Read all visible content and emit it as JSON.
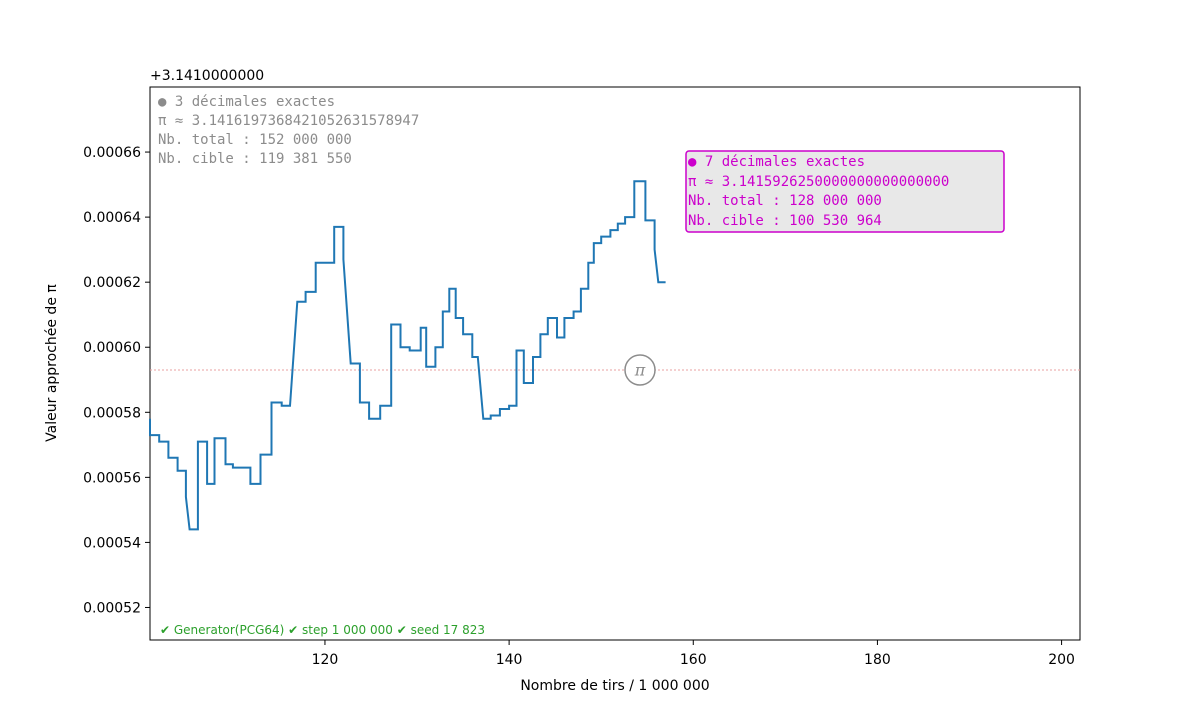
{
  "chart_data": {
    "type": "line",
    "offset_label": "+3.1410000000",
    "xlabel": "Nombre de tirs / 1 000 000",
    "ylabel": "Valeur approchée de π",
    "xlim": [
      101,
      202
    ],
    "ylim": [
      0.00051,
      0.00068
    ],
    "x_ticks": [
      120,
      140,
      160,
      180,
      200
    ],
    "y_ticks": [
      0.00052,
      0.00054,
      0.00056,
      0.00058,
      0.0006,
      0.00062,
      0.00064,
      0.00066
    ],
    "y_tick_labels": [
      "0.00052",
      "0.00054",
      "0.00056",
      "0.00058",
      "0.00060",
      "0.00062",
      "0.00064",
      "0.00066"
    ],
    "reference_line": {
      "y": 0.000593,
      "label": "π",
      "color": "#e8a0a0"
    },
    "series": [
      {
        "color": "#1f77b4",
        "points": [
          [
            101.0,
            0.000578
          ],
          [
            101.0,
            0.000573
          ],
          [
            102.0,
            0.000573
          ],
          [
            102.0,
            0.000571
          ],
          [
            103.0,
            0.000571
          ],
          [
            103.0,
            0.000566
          ],
          [
            104.0,
            0.000566
          ],
          [
            104.0,
            0.000562
          ],
          [
            104.9,
            0.000562
          ],
          [
            104.9,
            0.000554
          ],
          [
            105.3,
            0.000544
          ],
          [
            106.2,
            0.000544
          ],
          [
            106.2,
            0.000571
          ],
          [
            107.2,
            0.000571
          ],
          [
            107.2,
            0.000558
          ],
          [
            108.0,
            0.000558
          ],
          [
            108.0,
            0.000572
          ],
          [
            109.2,
            0.000572
          ],
          [
            109.2,
            0.000564
          ],
          [
            110.0,
            0.000564
          ],
          [
            110.0,
            0.000563
          ],
          [
            111.9,
            0.000563
          ],
          [
            111.9,
            0.000558
          ],
          [
            113.0,
            0.000558
          ],
          [
            113.0,
            0.000567
          ],
          [
            114.2,
            0.000567
          ],
          [
            114.2,
            0.000583
          ],
          [
            115.3,
            0.000583
          ],
          [
            115.3,
            0.000582
          ],
          [
            116.2,
            0.000582
          ],
          [
            117.0,
            0.000614
          ],
          [
            117.9,
            0.000614
          ],
          [
            117.9,
            0.000617
          ],
          [
            119.0,
            0.000617
          ],
          [
            119.0,
            0.000626
          ],
          [
            121.0,
            0.000626
          ],
          [
            121.0,
            0.000637
          ],
          [
            122.0,
            0.000637
          ],
          [
            122.0,
            0.000627
          ],
          [
            122.8,
            0.000595
          ],
          [
            123.8,
            0.000595
          ],
          [
            123.8,
            0.000583
          ],
          [
            124.8,
            0.000583
          ],
          [
            124.8,
            0.000578
          ],
          [
            126.0,
            0.000578
          ],
          [
            126.0,
            0.000582
          ],
          [
            127.2,
            0.000582
          ],
          [
            127.2,
            0.000607
          ],
          [
            128.2,
            0.000607
          ],
          [
            128.2,
            0.0006
          ],
          [
            129.2,
            0.0006
          ],
          [
            129.2,
            0.000599
          ],
          [
            130.4,
            0.000599
          ],
          [
            130.4,
            0.000606
          ],
          [
            131.0,
            0.000606
          ],
          [
            131.0,
            0.000594
          ],
          [
            132.0,
            0.000594
          ],
          [
            132.0,
            0.0006
          ],
          [
            132.8,
            0.0006
          ],
          [
            132.8,
            0.000611
          ],
          [
            133.5,
            0.000611
          ],
          [
            133.5,
            0.000618
          ],
          [
            134.2,
            0.000618
          ],
          [
            134.2,
            0.000609
          ],
          [
            135.0,
            0.000609
          ],
          [
            135.0,
            0.000604
          ],
          [
            136.0,
            0.000604
          ],
          [
            136.0,
            0.000597
          ],
          [
            136.6,
            0.000597
          ],
          [
            137.2,
            0.000578
          ],
          [
            138.0,
            0.000578
          ],
          [
            138.0,
            0.000579
          ],
          [
            139.0,
            0.000579
          ],
          [
            139.0,
            0.000581
          ],
          [
            140.0,
            0.000581
          ],
          [
            140.0,
            0.000582
          ],
          [
            140.8,
            0.000582
          ],
          [
            140.8,
            0.000599
          ],
          [
            141.6,
            0.000599
          ],
          [
            141.6,
            0.000589
          ],
          [
            142.6,
            0.000589
          ],
          [
            142.6,
            0.000597
          ],
          [
            143.4,
            0.000597
          ],
          [
            143.4,
            0.000604
          ],
          [
            144.2,
            0.000604
          ],
          [
            144.2,
            0.000609
          ],
          [
            145.2,
            0.000609
          ],
          [
            145.2,
            0.000603
          ],
          [
            146.0,
            0.000603
          ],
          [
            146.0,
            0.000609
          ],
          [
            147.0,
            0.000609
          ],
          [
            147.0,
            0.000611
          ],
          [
            147.8,
            0.000611
          ],
          [
            147.8,
            0.000618
          ],
          [
            148.6,
            0.000618
          ],
          [
            148.6,
            0.000626
          ],
          [
            149.2,
            0.000626
          ],
          [
            149.2,
            0.000632
          ],
          [
            150.0,
            0.000632
          ],
          [
            150.0,
            0.000634
          ],
          [
            151.0,
            0.000634
          ],
          [
            151.0,
            0.000636
          ],
          [
            151.8,
            0.000636
          ],
          [
            151.8,
            0.000638
          ],
          [
            152.6,
            0.000638
          ],
          [
            152.6,
            0.00064
          ],
          [
            153.6,
            0.00064
          ],
          [
            153.6,
            0.000651
          ],
          [
            154.8,
            0.000651
          ],
          [
            154.8,
            0.000639
          ],
          [
            155.8,
            0.000639
          ],
          [
            155.8,
            0.00063
          ],
          [
            156.2,
            0.00062
          ],
          [
            157.0,
            0.00062
          ]
        ]
      }
    ],
    "annotations": [
      {
        "id": "current",
        "color": "#8c8c8c",
        "lines": [
          "● 3 décimales exactes",
          "π ≈ 3.1416197368421052631578947",
          "Nb. total : 152 000 000",
          "Nb. cible : 119 381 550"
        ]
      },
      {
        "id": "best",
        "color": "#cc00cc",
        "background": "#e8e8e8",
        "lines": [
          "● 7 décimales exactes",
          "π ≈ 3.1415926250000000000000000",
          "Nb. total : 128 000 000",
          "Nb. cible : 100 530 964"
        ]
      }
    ],
    "footer": {
      "text": "✔ Generator(PCG64) ✔ step 1 000 000 ✔ seed 17 823",
      "color": "#2ca02c"
    },
    "grid": false
  }
}
